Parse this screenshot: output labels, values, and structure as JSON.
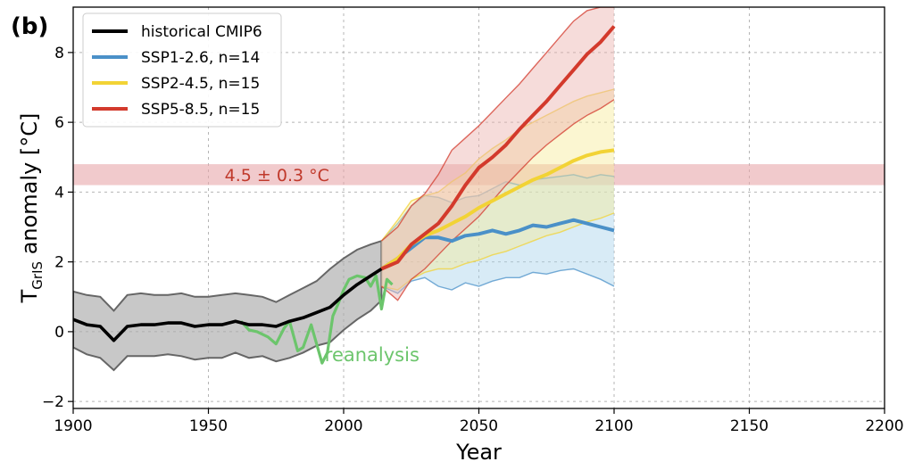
{
  "panel_label": "(b)",
  "chart_data": {
    "type": "line",
    "xlabel": "Year",
    "ylabel": "T",
    "ylabel_sub": "GrIS",
    "ylabel_rest": " anomaly [°C]",
    "xlim": [
      1900,
      2200
    ],
    "ylim": [
      -2.2,
      9.3
    ],
    "xticks": [
      1900,
      1950,
      2000,
      2050,
      2100,
      2150,
      2200
    ],
    "yticks": [
      -2,
      0,
      2,
      4,
      6,
      8
    ],
    "ytick_labels": [
      "−2",
      "0",
      "2",
      "4",
      "6",
      "8"
    ],
    "grid": true,
    "legend_position": "top-left",
    "threshold_band": {
      "center": 4.5,
      "half_width": 0.3,
      "label": "4.5 ± 0.3 °C",
      "fill": "#e8a6aa",
      "text_color": "#c0392b"
    },
    "series": [
      {
        "name": "historical CMIP6",
        "color": "#000000",
        "band_color": "#aaaaaa",
        "edge_color": "#666666",
        "x": [
          1900,
          1905,
          1910,
          1915,
          1920,
          1925,
          1930,
          1935,
          1940,
          1945,
          1950,
          1955,
          1960,
          1965,
          1970,
          1975,
          1980,
          1985,
          1990,
          1995,
          2000,
          2005,
          2010,
          2014
        ],
        "mean": [
          0.35,
          0.2,
          0.15,
          -0.25,
          0.15,
          0.2,
          0.2,
          0.25,
          0.25,
          0.15,
          0.2,
          0.2,
          0.3,
          0.2,
          0.2,
          0.15,
          0.3,
          0.4,
          0.55,
          0.7,
          1.05,
          1.35,
          1.6,
          1.8
        ],
        "upper": [
          1.15,
          1.05,
          1.0,
          0.6,
          1.05,
          1.1,
          1.05,
          1.05,
          1.1,
          1.0,
          1.0,
          1.05,
          1.1,
          1.05,
          1.0,
          0.85,
          1.05,
          1.25,
          1.45,
          1.8,
          2.1,
          2.35,
          2.5,
          2.6
        ],
        "lower": [
          -0.45,
          -0.65,
          -0.75,
          -1.1,
          -0.7,
          -0.7,
          -0.7,
          -0.65,
          -0.7,
          -0.8,
          -0.75,
          -0.75,
          -0.6,
          -0.75,
          -0.7,
          -0.85,
          -0.75,
          -0.6,
          -0.4,
          -0.3,
          0.05,
          0.35,
          0.6,
          0.9
        ]
      },
      {
        "name": "SSP1-2.6, n=14",
        "color": "#4a90c8",
        "band_color": "#a9d2ec",
        "x": [
          2014,
          2020,
          2025,
          2030,
          2035,
          2040,
          2045,
          2050,
          2055,
          2060,
          2065,
          2070,
          2075,
          2080,
          2085,
          2090,
          2095,
          2100
        ],
        "mean": [
          1.8,
          2.1,
          2.4,
          2.7,
          2.7,
          2.6,
          2.75,
          2.8,
          2.9,
          2.8,
          2.9,
          3.05,
          3.0,
          3.1,
          3.2,
          3.1,
          3.0,
          2.9
        ],
        "upper": [
          2.6,
          3.1,
          3.6,
          3.9,
          3.85,
          3.7,
          3.85,
          3.9,
          4.1,
          4.3,
          4.2,
          4.35,
          4.4,
          4.45,
          4.5,
          4.4,
          4.5,
          4.45
        ],
        "lower": [
          1.3,
          1.1,
          1.45,
          1.55,
          1.3,
          1.2,
          1.4,
          1.3,
          1.45,
          1.55,
          1.55,
          1.7,
          1.65,
          1.75,
          1.8,
          1.65,
          1.5,
          1.3
        ]
      },
      {
        "name": "SSP2-4.5, n=15",
        "color": "#f2d335",
        "band_color": "#f7ec9a",
        "x": [
          2014,
          2020,
          2025,
          2030,
          2035,
          2040,
          2045,
          2050,
          2055,
          2060,
          2065,
          2070,
          2075,
          2080,
          2085,
          2090,
          2095,
          2100
        ],
        "mean": [
          1.8,
          2.1,
          2.5,
          2.75,
          2.9,
          3.1,
          3.3,
          3.55,
          3.75,
          3.95,
          4.15,
          4.35,
          4.5,
          4.7,
          4.9,
          5.05,
          5.15,
          5.2
        ],
        "upper": [
          2.6,
          3.2,
          3.75,
          3.9,
          4.0,
          4.3,
          4.55,
          4.95,
          5.25,
          5.5,
          5.8,
          6.0,
          6.2,
          6.4,
          6.6,
          6.75,
          6.85,
          6.95
        ],
        "lower": [
          1.3,
          1.2,
          1.5,
          1.7,
          1.8,
          1.8,
          1.95,
          2.05,
          2.2,
          2.3,
          2.45,
          2.6,
          2.75,
          2.85,
          3.0,
          3.15,
          3.25,
          3.4
        ]
      },
      {
        "name": "SSP5-8.5, n=15",
        "color": "#d33a2c",
        "band_color": "#ebb1ad",
        "x": [
          2014,
          2020,
          2025,
          2030,
          2035,
          2040,
          2045,
          2050,
          2055,
          2060,
          2065,
          2070,
          2075,
          2080,
          2085,
          2090,
          2095,
          2100
        ],
        "mean": [
          1.8,
          2.0,
          2.5,
          2.8,
          3.1,
          3.6,
          4.2,
          4.7,
          5.0,
          5.35,
          5.8,
          6.2,
          6.6,
          7.05,
          7.5,
          7.95,
          8.3,
          8.75
        ],
        "upper": [
          2.6,
          3.0,
          3.6,
          3.95,
          4.5,
          5.2,
          5.55,
          5.9,
          6.3,
          6.7,
          7.1,
          7.55,
          8.0,
          8.45,
          8.9,
          9.2,
          9.3,
          9.3
        ],
        "lower": [
          1.3,
          0.9,
          1.5,
          1.8,
          2.2,
          2.6,
          2.95,
          3.3,
          3.75,
          4.2,
          4.6,
          5.0,
          5.35,
          5.65,
          5.95,
          6.2,
          6.4,
          6.65
        ]
      },
      {
        "name": "reanalysis",
        "color": "#6cc56c",
        "x": [
          1962,
          1965,
          1968,
          1972,
          1975,
          1978,
          1980,
          1983,
          1985,
          1988,
          1990,
          1992,
          1994,
          1996,
          1998,
          2000,
          2002,
          2005,
          2008,
          2010,
          2012,
          2014,
          2016,
          2018
        ],
        "values": [
          0.3,
          0.05,
          0.0,
          -0.15,
          -0.35,
          0.1,
          0.3,
          -0.55,
          -0.45,
          0.2,
          -0.35,
          -0.9,
          -0.6,
          0.45,
          0.8,
          1.2,
          1.5,
          1.6,
          1.55,
          1.3,
          1.6,
          0.65,
          1.5,
          1.35
        ],
        "label_pos": {
          "x": 1993,
          "y": -0.85
        }
      }
    ]
  }
}
